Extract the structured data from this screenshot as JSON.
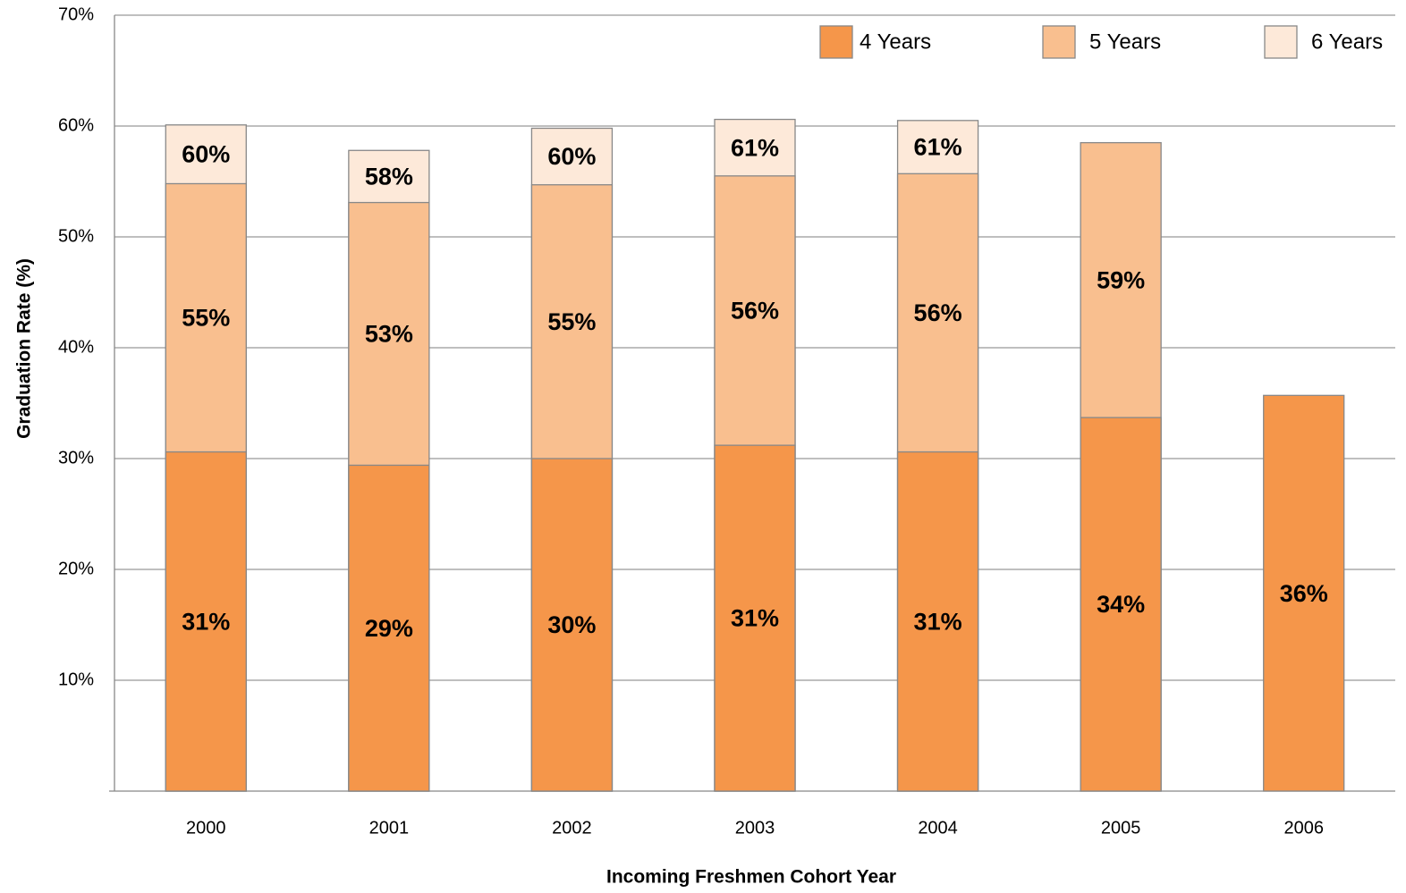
{
  "chart_data": {
    "type": "bar",
    "overlap": true,
    "x_label": "Incoming Freshmen Cohort Year",
    "y_label": "Graduation Rate (%)",
    "categories": [
      "2000",
      "2001",
      "2002",
      "2003",
      "2004",
      "2005",
      "2006"
    ],
    "series": [
      {
        "name": "4 Years",
        "color": "#f5964a",
        "values": [
          30.6,
          29.4,
          30.0,
          31.2,
          30.6,
          33.7,
          35.7
        ],
        "value_labels": [
          "31%",
          "29%",
          "30%",
          "31%",
          "31%",
          "34%",
          "36%"
        ]
      },
      {
        "name": "5 Years",
        "color": "#f9bf8f",
        "values": [
          54.8,
          53.1,
          54.7,
          55.5,
          55.7,
          58.5,
          null
        ],
        "value_labels": [
          "55%",
          "53%",
          "55%",
          "56%",
          "56%",
          "59%",
          null
        ]
      },
      {
        "name": "6 Years",
        "color": "#fde9d9",
        "values": [
          60.1,
          57.8,
          59.8,
          60.6,
          60.5,
          null,
          null
        ],
        "value_labels": [
          "60%",
          "58%",
          "60%",
          "61%",
          "61%",
          null,
          null
        ]
      }
    ],
    "ylim": [
      0,
      70
    ],
    "yticks": [
      {
        "value": 10,
        "label": "10%"
      },
      {
        "value": 20,
        "label": "20%"
      },
      {
        "value": 30,
        "label": "30%"
      },
      {
        "value": 40,
        "label": "40%"
      },
      {
        "value": 50,
        "label": "50%"
      },
      {
        "value": 60,
        "label": "60%"
      },
      {
        "value": 70,
        "label": "70%"
      }
    ],
    "grid": true,
    "legend": "top-right"
  }
}
